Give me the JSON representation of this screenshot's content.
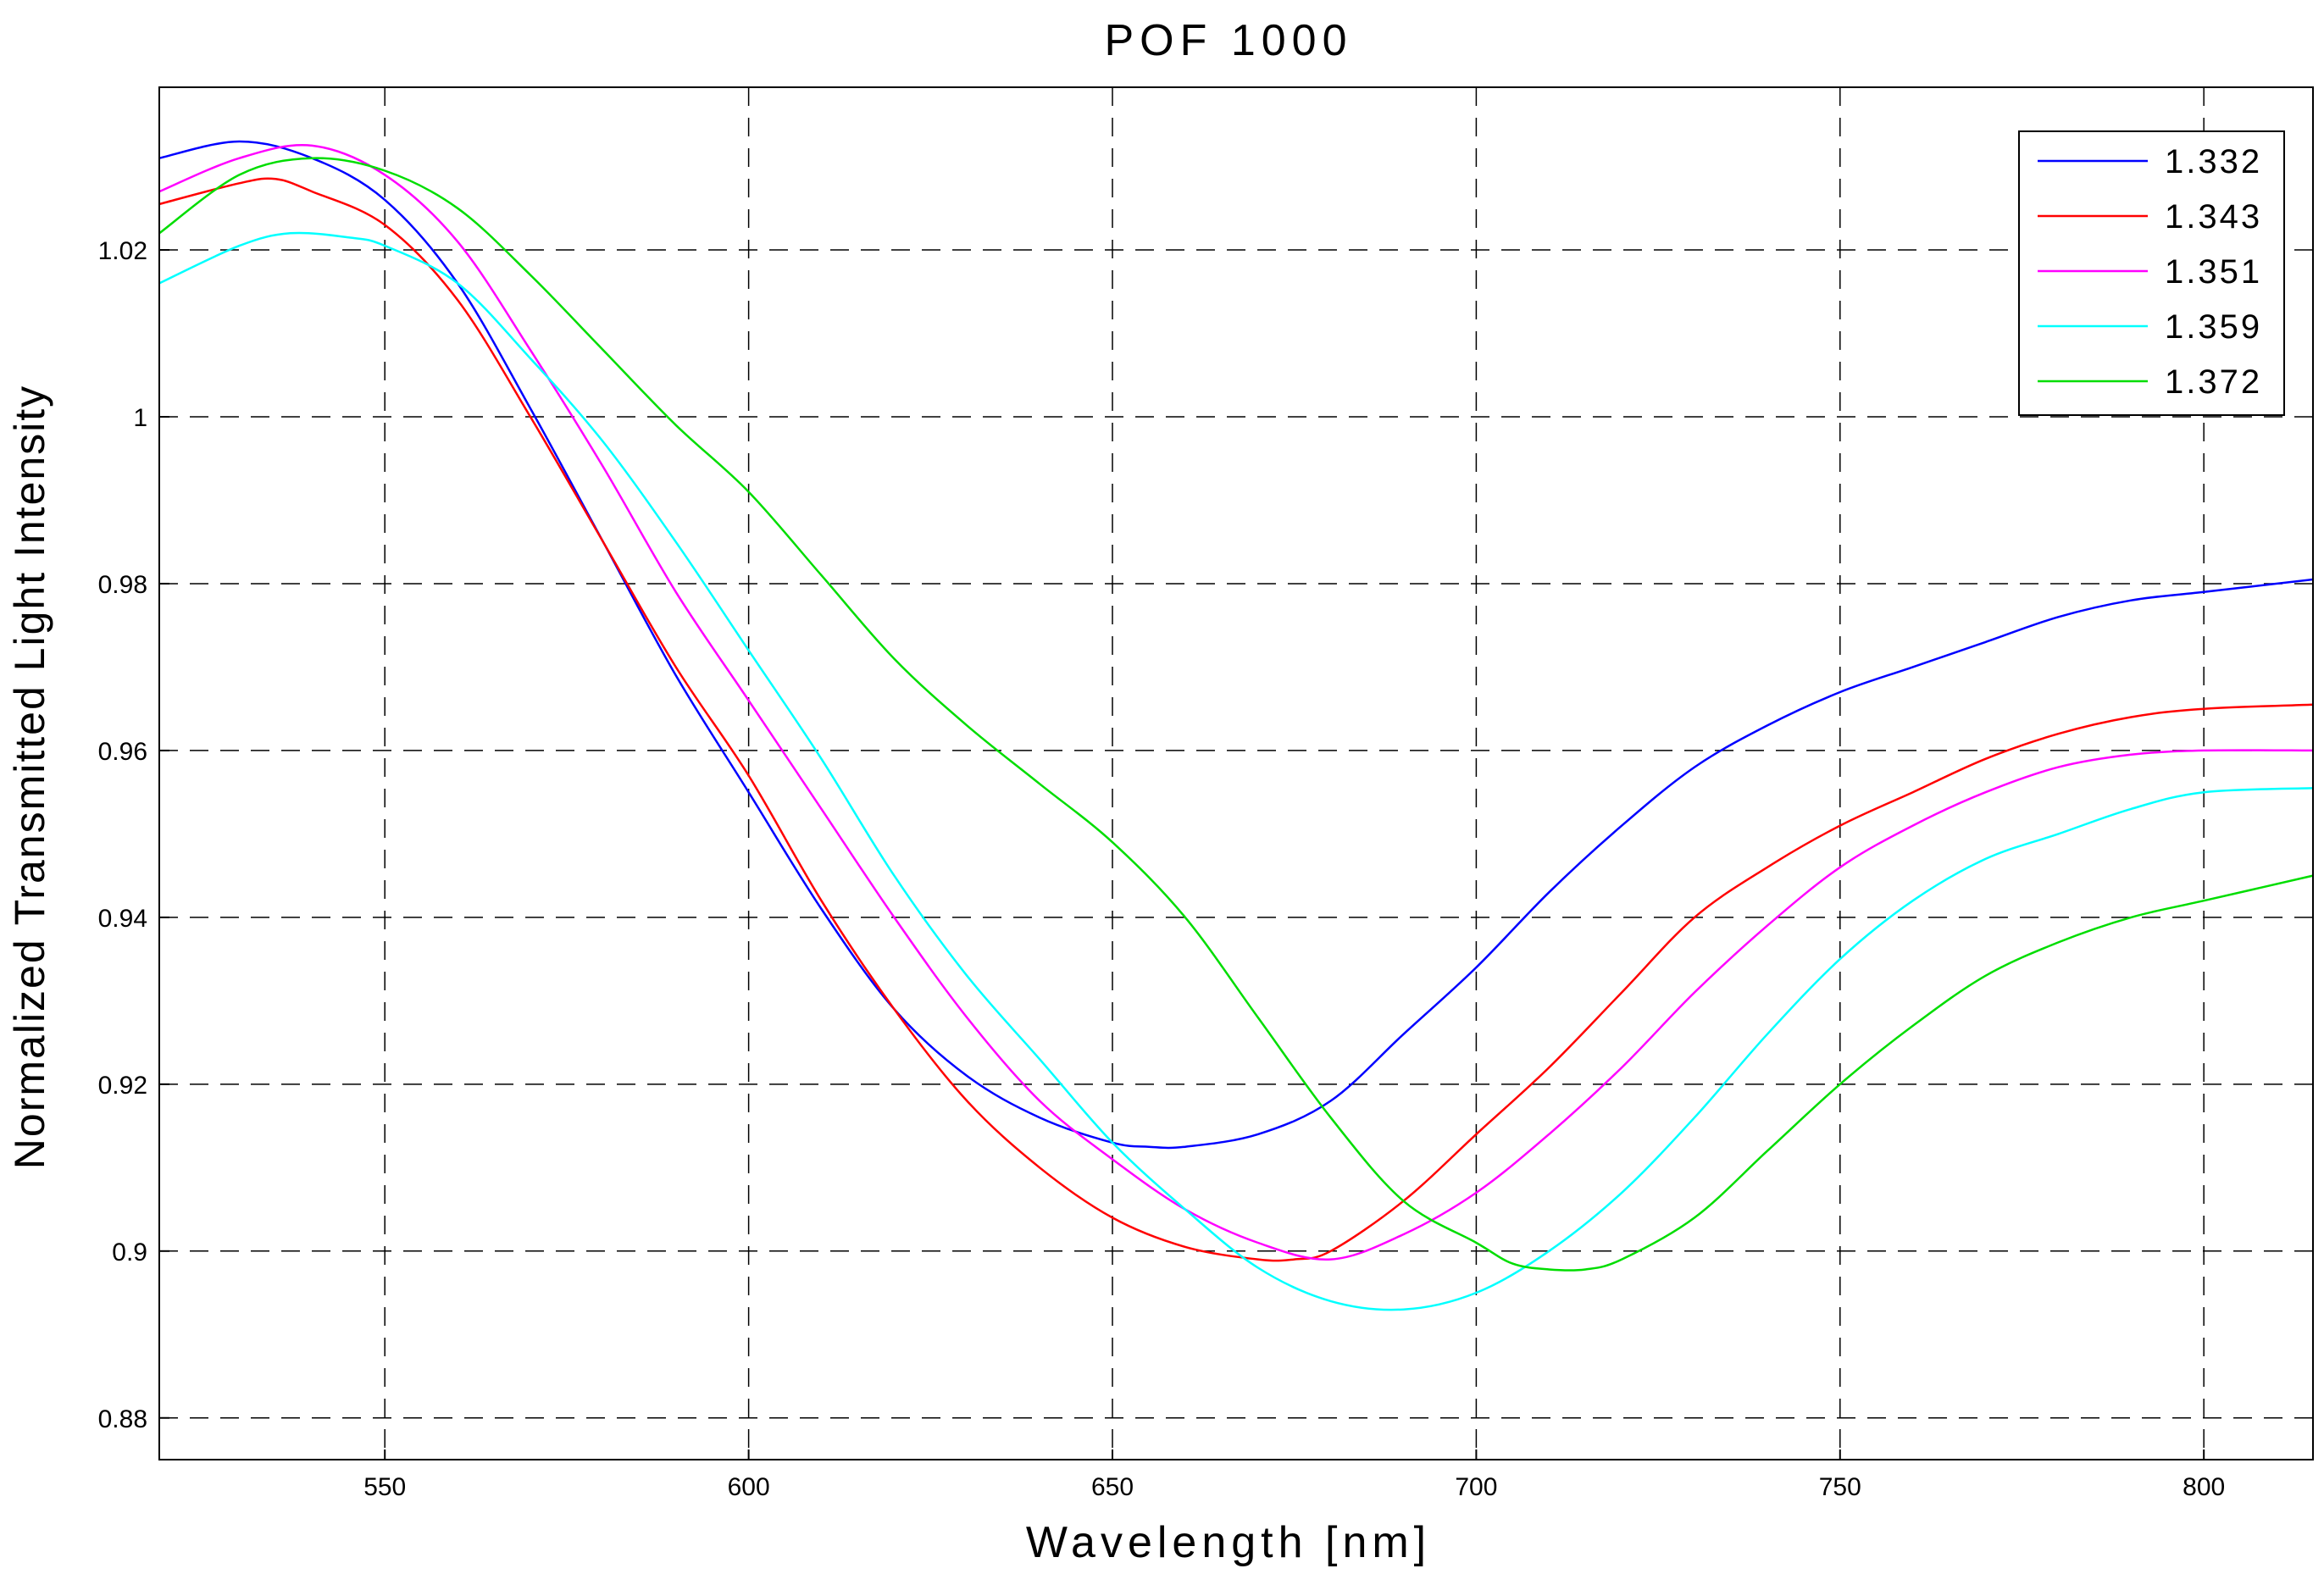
{
  "chart_data": {
    "type": "line",
    "title": "POF 1000",
    "xlabel": "Wavelength [nm]",
    "ylabel": "Normalized Transmitted Light Intensity",
    "xlim": [
      519,
      815
    ],
    "ylim": [
      0.875,
      1.0395
    ],
    "xticks": [
      550,
      600,
      650,
      700,
      750,
      800
    ],
    "xtick_labels": [
      "550",
      "600",
      "650",
      "700",
      "750",
      "800"
    ],
    "yticks": [
      0.88,
      0.9,
      0.92,
      0.94,
      0.96,
      0.98,
      1.0,
      1.02
    ],
    "ytick_labels": [
      "0.88",
      "0.9",
      "0.92",
      "0.94",
      "0.96",
      "0.98",
      "1",
      "1.02"
    ],
    "grid": true,
    "grid_style": "dashed",
    "legend_position": "top-right",
    "series": [
      {
        "name": "1.332",
        "color": "#0000ff",
        "x": [
          519,
          530,
          540,
          550,
          560,
          570,
          580,
          590,
          600,
          610,
          620,
          630,
          640,
          650,
          655,
          660,
          670,
          680,
          690,
          700,
          710,
          720,
          730,
          740,
          750,
          760,
          770,
          780,
          790,
          800,
          815
        ],
        "y": [
          1.031,
          1.033,
          1.031,
          1.026,
          1.016,
          1.001,
          0.985,
          0.969,
          0.955,
          0.941,
          0.929,
          0.921,
          0.916,
          0.913,
          0.9125,
          0.9125,
          0.914,
          0.918,
          0.926,
          0.934,
          0.943,
          0.951,
          0.958,
          0.963,
          0.967,
          0.97,
          0.973,
          0.976,
          0.978,
          0.979,
          0.9805
        ]
      },
      {
        "name": "1.343",
        "color": "#ff0000",
        "x": [
          519,
          530,
          535,
          540,
          550,
          560,
          570,
          580,
          590,
          600,
          610,
          620,
          630,
          640,
          650,
          660,
          670,
          675,
          680,
          690,
          700,
          710,
          720,
          730,
          740,
          750,
          760,
          770,
          780,
          790,
          800,
          815
        ],
        "y": [
          1.0255,
          1.028,
          1.0285,
          1.027,
          1.023,
          1.014,
          1.0,
          0.985,
          0.97,
          0.957,
          0.942,
          0.929,
          0.918,
          0.91,
          0.904,
          0.9005,
          0.899,
          0.899,
          0.9,
          0.906,
          0.914,
          0.922,
          0.931,
          0.94,
          0.946,
          0.951,
          0.955,
          0.959,
          0.962,
          0.964,
          0.965,
          0.9655
        ]
      },
      {
        "name": "1.351",
        "color": "#ff00ff",
        "x": [
          519,
          530,
          540,
          550,
          560,
          570,
          580,
          590,
          600,
          610,
          620,
          630,
          640,
          650,
          660,
          670,
          680,
          690,
          700,
          710,
          720,
          730,
          740,
          750,
          760,
          770,
          780,
          790,
          800,
          815
        ],
        "y": [
          1.027,
          1.031,
          1.0325,
          1.029,
          1.021,
          1.008,
          0.994,
          0.979,
          0.966,
          0.953,
          0.94,
          0.928,
          0.918,
          0.911,
          0.905,
          0.901,
          0.899,
          0.902,
          0.907,
          0.914,
          0.922,
          0.931,
          0.939,
          0.946,
          0.951,
          0.955,
          0.958,
          0.9595,
          0.96,
          0.96
        ]
      },
      {
        "name": "1.359",
        "color": "#00ffff",
        "x": [
          519,
          530,
          537,
          545,
          550,
          560,
          570,
          580,
          590,
          600,
          610,
          620,
          630,
          640,
          650,
          660,
          670,
          680,
          690,
          700,
          710,
          720,
          730,
          740,
          750,
          760,
          770,
          780,
          790,
          800,
          815
        ],
        "y": [
          1.016,
          1.0205,
          1.022,
          1.0215,
          1.0205,
          1.016,
          1.007,
          0.997,
          0.985,
          0.972,
          0.959,
          0.945,
          0.933,
          0.923,
          0.913,
          0.905,
          0.898,
          0.894,
          0.893,
          0.895,
          0.9,
          0.907,
          0.916,
          0.926,
          0.935,
          0.942,
          0.947,
          0.95,
          0.953,
          0.955,
          0.9555
        ]
      },
      {
        "name": "1.372",
        "color": "#00dd00",
        "x": [
          519,
          530,
          540,
          550,
          560,
          570,
          580,
          590,
          600,
          610,
          620,
          630,
          640,
          650,
          660,
          670,
          680,
          690,
          700,
          705,
          710,
          715,
          720,
          730,
          740,
          750,
          760,
          770,
          780,
          790,
          800,
          815
        ],
        "y": [
          1.022,
          1.029,
          1.031,
          1.0295,
          1.025,
          1.017,
          1.008,
          0.999,
          0.991,
          0.981,
          0.971,
          0.963,
          0.956,
          0.949,
          0.94,
          0.928,
          0.916,
          0.906,
          0.901,
          0.8985,
          0.8978,
          0.8978,
          0.899,
          0.904,
          0.912,
          0.92,
          0.927,
          0.933,
          0.937,
          0.94,
          0.942,
          0.945
        ]
      }
    ]
  }
}
